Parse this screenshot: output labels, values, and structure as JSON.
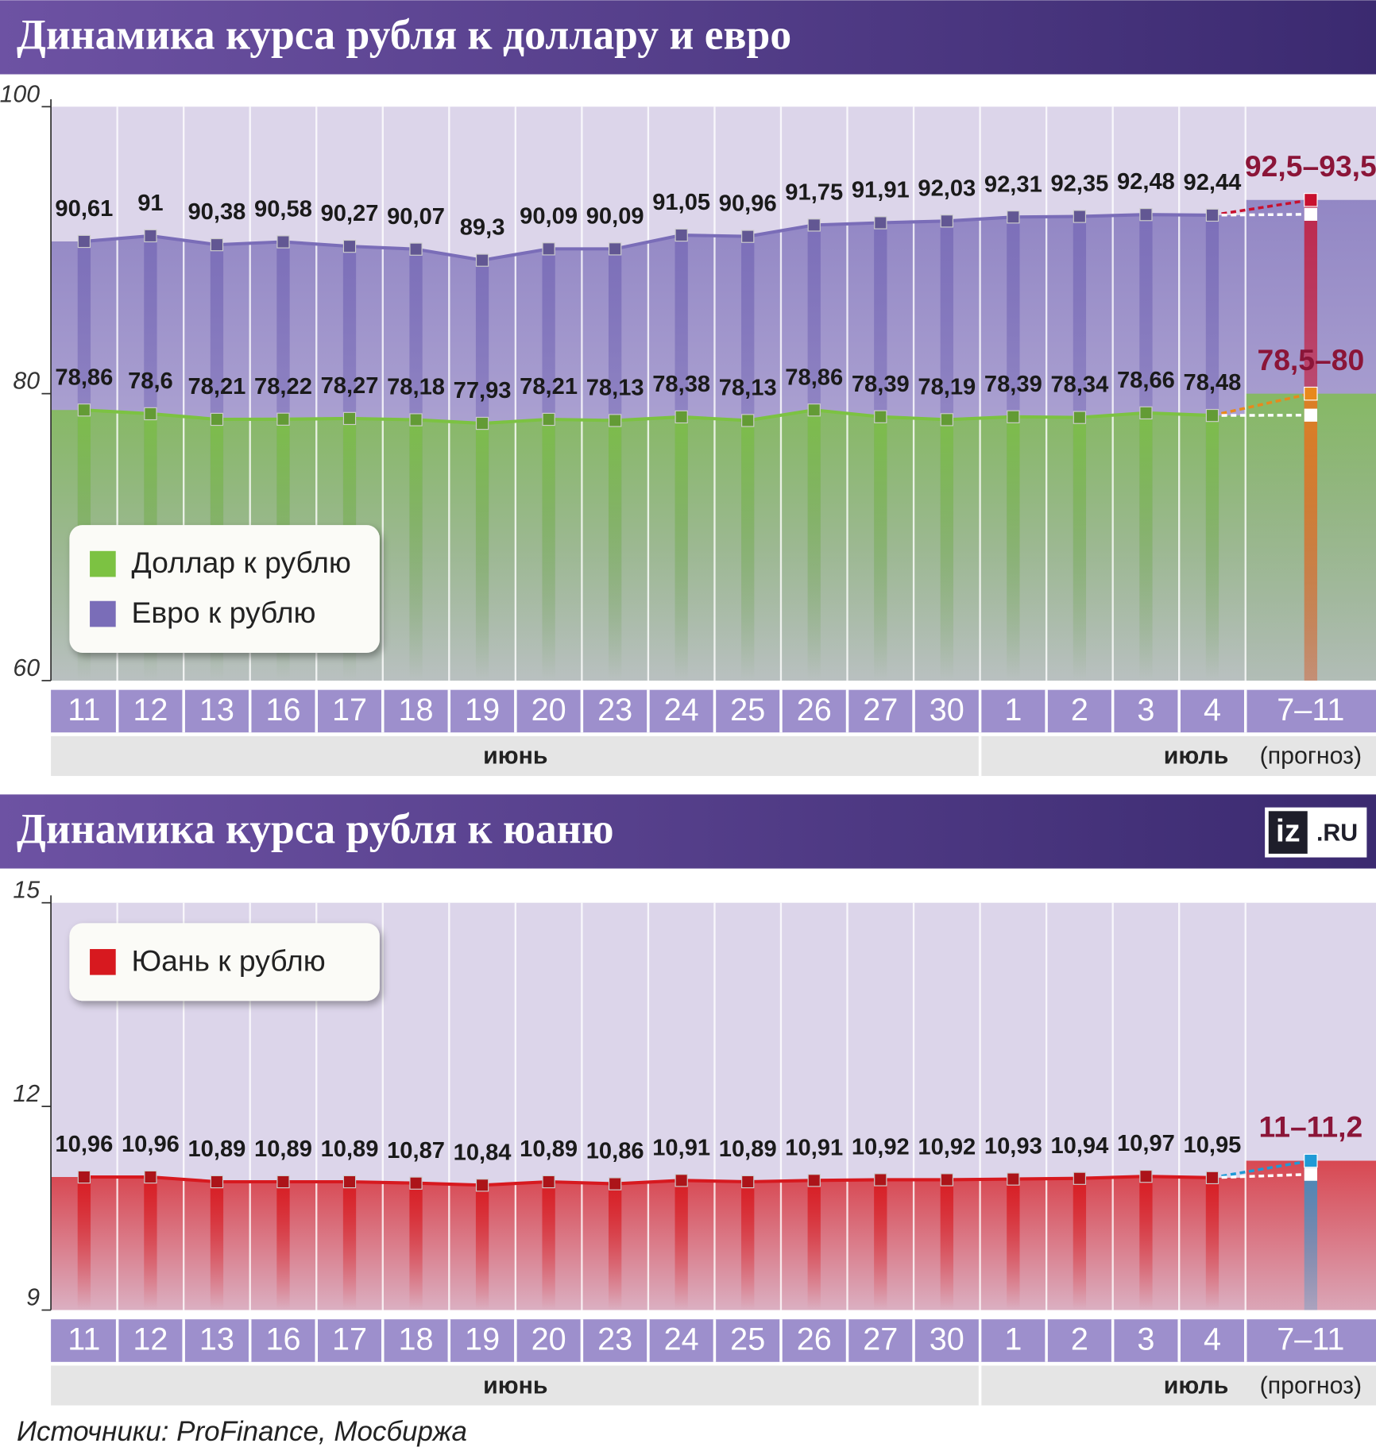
{
  "chart_data": [
    {
      "type": "line",
      "title": "Динамика курса рубля к доллару и евро",
      "categories": [
        "11",
        "12",
        "13",
        "16",
        "17",
        "18",
        "19",
        "20",
        "23",
        "24",
        "25",
        "26",
        "27",
        "30",
        "1",
        "2",
        "3",
        "4",
        "7–11"
      ],
      "months": [
        "июнь",
        "июль"
      ],
      "forecast_note": "(прогноз)",
      "ylim": [
        60,
        100
      ],
      "yticks": [
        60,
        80,
        100
      ],
      "legend": "lower left",
      "series": [
        {
          "name": "Евро к рублю",
          "color": "#7a6db8",
          "values": [
            90.61,
            91,
            90.38,
            90.58,
            90.27,
            90.07,
            89.3,
            90.09,
            90.09,
            91.05,
            90.96,
            91.75,
            91.91,
            92.03,
            92.31,
            92.35,
            92.48,
            92.44,
            null
          ],
          "value_labels": [
            "90,61",
            "91",
            "90,38",
            "90,58",
            "90,27",
            "90,07",
            "89,3",
            "90,09",
            "90,09",
            "91,05",
            "90,96",
            "91,75",
            "91,91",
            "92,03",
            "92,31",
            "92,35",
            "92,48",
            "92,44",
            null
          ],
          "forecast_range": [
            92.5,
            93.5
          ],
          "forecast_label": "92,5–93,5",
          "forecast_color": "#c8102e"
        },
        {
          "name": "Доллар к рублю",
          "color": "#7cc242",
          "values": [
            78.86,
            78.6,
            78.21,
            78.22,
            78.27,
            78.18,
            77.93,
            78.21,
            78.13,
            78.38,
            78.13,
            78.86,
            78.39,
            78.19,
            78.39,
            78.34,
            78.66,
            78.48,
            null
          ],
          "value_labels": [
            "78,86",
            "78,6",
            "78,21",
            "78,22",
            "78,27",
            "78,18",
            "77,93",
            "78,21",
            "78,13",
            "78,38",
            "78,13",
            "78,86",
            "78,39",
            "78,19",
            "78,39",
            "78,34",
            "78,66",
            "78,48",
            null
          ],
          "forecast_range": [
            78.5,
            80
          ],
          "forecast_label": "78,5–80",
          "forecast_color": "#e8891c"
        }
      ]
    },
    {
      "type": "line",
      "title": "Динамика курса рубля к юаню",
      "categories": [
        "11",
        "12",
        "13",
        "16",
        "17",
        "18",
        "19",
        "20",
        "23",
        "24",
        "25",
        "26",
        "27",
        "30",
        "1",
        "2",
        "3",
        "4",
        "7–11"
      ],
      "months": [
        "июнь",
        "июль"
      ],
      "forecast_note": "(прогноз)",
      "ylim": [
        9,
        15
      ],
      "yticks": [
        9,
        12,
        15
      ],
      "legend": "upper left",
      "series": [
        {
          "name": "Юань к рублю",
          "color": "#d7191f",
          "values": [
            10.96,
            10.96,
            10.89,
            10.89,
            10.89,
            10.87,
            10.84,
            10.89,
            10.86,
            10.91,
            10.89,
            10.91,
            10.92,
            10.92,
            10.93,
            10.94,
            10.97,
            10.95,
            null
          ],
          "value_labels": [
            "10,96",
            "10,96",
            "10,89",
            "10,89",
            "10,89",
            "10,87",
            "10,84",
            "10,89",
            "10,86",
            "10,91",
            "10,89",
            "10,91",
            "10,92",
            "10,92",
            "10,93",
            "10,94",
            "10,97",
            "10,95",
            null
          ],
          "forecast_range": [
            11,
            11.2
          ],
          "forecast_label": "11–11,2",
          "forecast_color": "#1f9ad6"
        }
      ]
    }
  ],
  "logo": [
    "iz",
    ".RU"
  ],
  "source": "Источники: ProFinance, Мосбиржа"
}
